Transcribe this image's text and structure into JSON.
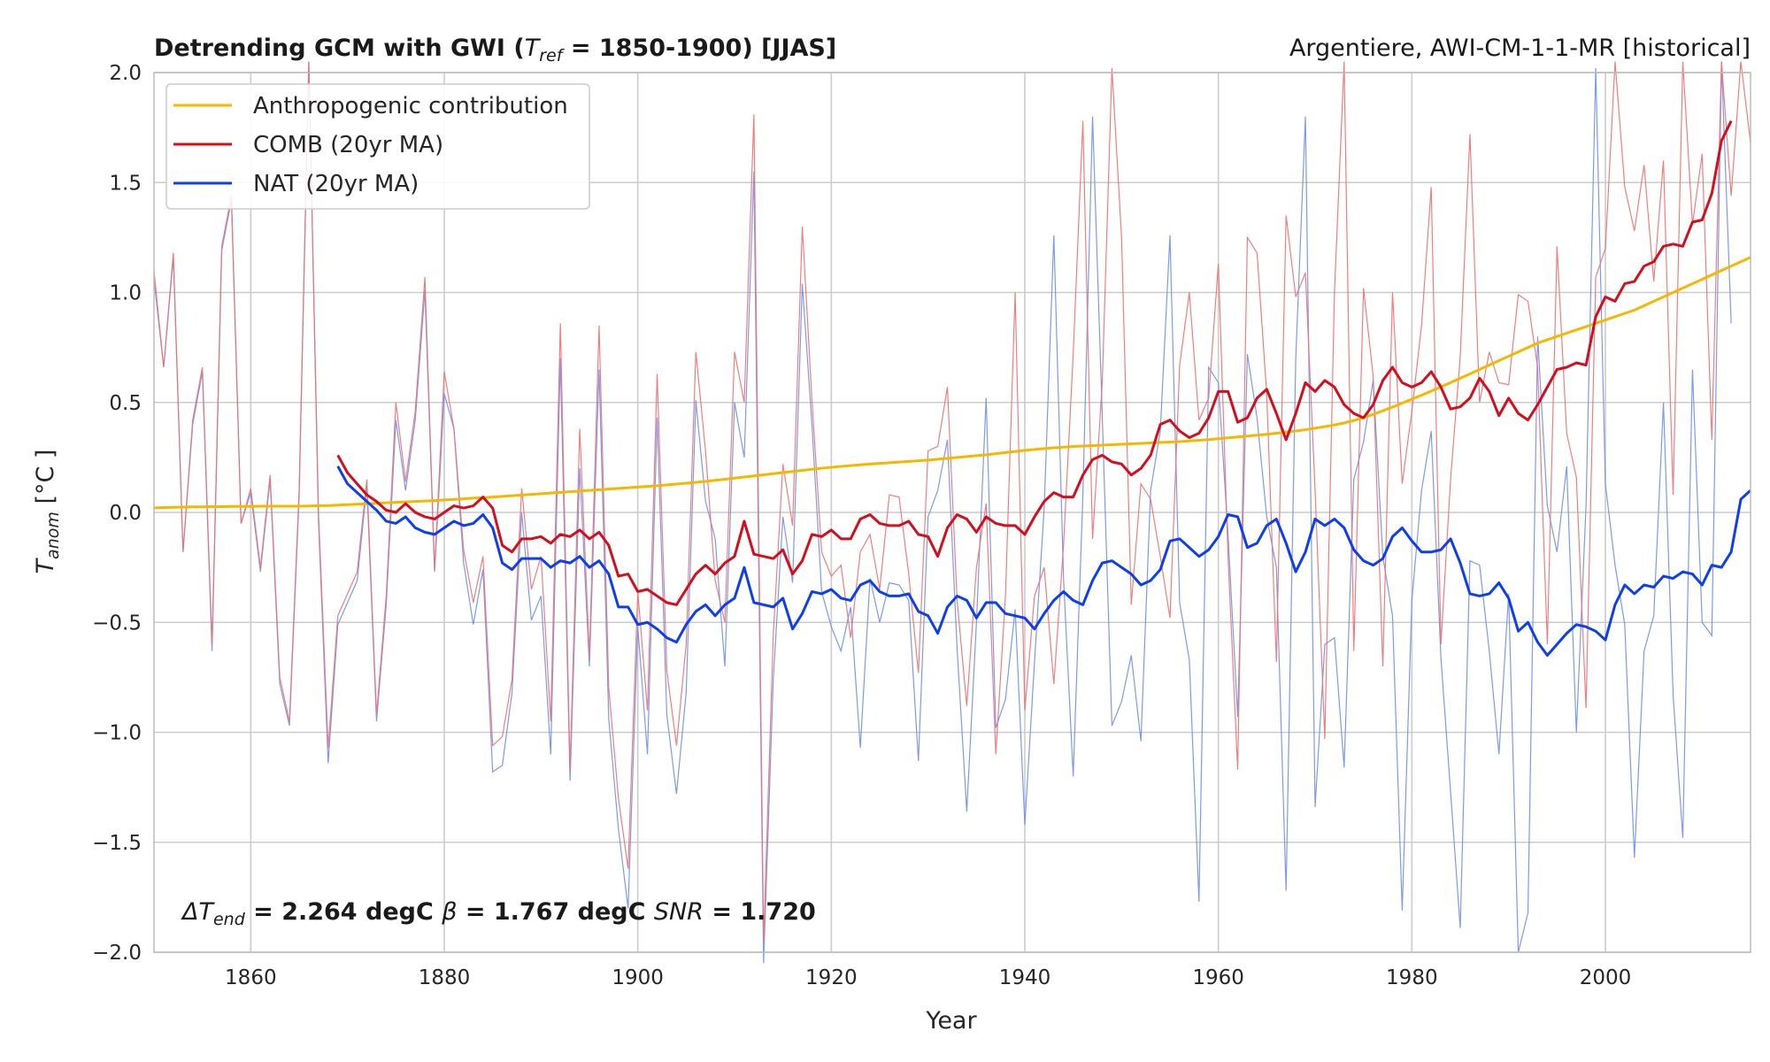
{
  "chart_data": {
    "type": "line",
    "title": "Detrending GCM with GWI (",
    "title_sym": "T",
    "title_sub": "ref",
    "title_rest": " = 1850-1900) [JJAS]",
    "subtitle_right": "Argentiere, AWI-CM-1-1-MR [historical]",
    "xlabel": "Year",
    "ylabel": "T",
    "ylabel_sub": "anom",
    "ylabel_unit": " [°C ]",
    "xlim": [
      1850,
      2015
    ],
    "ylim": [
      -2.0,
      2.0
    ],
    "xticks": [
      1860,
      1880,
      1900,
      1920,
      1940,
      1960,
      1980,
      2000
    ],
    "yticks": [
      -2.0,
      -1.5,
      -1.0,
      -0.5,
      0.0,
      0.5,
      1.0,
      1.5,
      2.0
    ],
    "ytick_labels": [
      "−2.0",
      "−1.5",
      "−1.0",
      "−0.5",
      "0.0",
      "0.5",
      "1.0",
      "1.5",
      "2.0"
    ],
    "grid": true,
    "legend_position": "top-left",
    "colors": {
      "anthro": "#f5b800",
      "comb": "#d40f1d",
      "nat": "#0d3ef0",
      "comb_raw": "#f07070",
      "nat_raw": "#6e8ff0",
      "grid": "#cccccc",
      "axis": "#bbbbbb"
    },
    "annotation": {
      "dT_sym": "ΔT",
      "dT_sub": "end",
      "dT_val": " = 2.264 degC ",
      "beta_sym": "β",
      "beta_val": " = 1.767 degC ",
      "snr_sym": "SNR",
      "snr_val": " =  1.720"
    },
    "series": [
      {
        "name": "Anthropogenic contribution",
        "key": "anthro",
        "x_start": 1850,
        "values": [
          0.02,
          0.022,
          0.023,
          0.024,
          0.025,
          0.025,
          0.026,
          0.026,
          0.027,
          0.027,
          0.027,
          0.028,
          0.028,
          0.028,
          0.028,
          0.028,
          0.029,
          0.03,
          0.031,
          0.033,
          0.035,
          0.037,
          0.039,
          0.041,
          0.044,
          0.046,
          0.048,
          0.05,
          0.052,
          0.054,
          0.057,
          0.059,
          0.062,
          0.065,
          0.067,
          0.07,
          0.073,
          0.076,
          0.079,
          0.082,
          0.085,
          0.088,
          0.091,
          0.094,
          0.097,
          0.1,
          0.103,
          0.106,
          0.109,
          0.112,
          0.115,
          0.118,
          0.121,
          0.125,
          0.129,
          0.133,
          0.137,
          0.141,
          0.146,
          0.151,
          0.156,
          0.161,
          0.166,
          0.171,
          0.176,
          0.181,
          0.186,
          0.191,
          0.196,
          0.201,
          0.205,
          0.209,
          0.213,
          0.217,
          0.22,
          0.223,
          0.226,
          0.229,
          0.232,
          0.235,
          0.238,
          0.242,
          0.246,
          0.25,
          0.254,
          0.258,
          0.262,
          0.267,
          0.272,
          0.277,
          0.282,
          0.286,
          0.29,
          0.294,
          0.297,
          0.3,
          0.302,
          0.304,
          0.306,
          0.308,
          0.31,
          0.312,
          0.314,
          0.316,
          0.318,
          0.32,
          0.322,
          0.325,
          0.328,
          0.331,
          0.335,
          0.339,
          0.343,
          0.347,
          0.351,
          0.355,
          0.36,
          0.365,
          0.37,
          0.376,
          0.383,
          0.39,
          0.398,
          0.407,
          0.418,
          0.431,
          0.446,
          0.462,
          0.479,
          0.497,
          0.515,
          0.533,
          0.552,
          0.571,
          0.59,
          0.61,
          0.63,
          0.65,
          0.67,
          0.69,
          0.71,
          0.73,
          0.75,
          0.77,
          0.785,
          0.8,
          0.815,
          0.83,
          0.845,
          0.86,
          0.875,
          0.89,
          0.905,
          0.92,
          0.94,
          0.96,
          0.98,
          1.0,
          1.02,
          1.04,
          1.06,
          1.08,
          1.1,
          1.12,
          1.14,
          1.16
        ]
      },
      {
        "name": "COMB (20yr MA)",
        "key": "comb",
        "x_start": 1869,
        "values": [
          0.26,
          0.18,
          0.13,
          0.08,
          0.05,
          0.01,
          0.0,
          0.04,
          0.0,
          -0.02,
          -0.03,
          0.0,
          0.03,
          0.02,
          0.03,
          0.07,
          0.02,
          -0.15,
          -0.18,
          -0.12,
          -0.12,
          -0.11,
          -0.14,
          -0.1,
          -0.11,
          -0.08,
          -0.12,
          -0.09,
          -0.15,
          -0.29,
          -0.28,
          -0.36,
          -0.35,
          -0.38,
          -0.41,
          -0.42,
          -0.35,
          -0.28,
          -0.24,
          -0.28,
          -0.23,
          -0.2,
          -0.04,
          -0.19,
          -0.2,
          -0.21,
          -0.17,
          -0.28,
          -0.22,
          -0.1,
          -0.11,
          -0.08,
          -0.12,
          -0.12,
          -0.03,
          -0.01,
          -0.05,
          -0.06,
          -0.06,
          -0.04,
          -0.1,
          -0.11,
          -0.2,
          -0.07,
          -0.01,
          -0.03,
          -0.09,
          -0.02,
          -0.05,
          -0.06,
          -0.06,
          -0.1,
          -0.02,
          0.05,
          0.09,
          0.07,
          0.07,
          0.17,
          0.24,
          0.26,
          0.23,
          0.22,
          0.17,
          0.2,
          0.26,
          0.4,
          0.42,
          0.37,
          0.34,
          0.36,
          0.43,
          0.55,
          0.55,
          0.41,
          0.43,
          0.52,
          0.56,
          0.45,
          0.33,
          0.45,
          0.59,
          0.55,
          0.6,
          0.57,
          0.49,
          0.45,
          0.43,
          0.49,
          0.6,
          0.66,
          0.59,
          0.57,
          0.59,
          0.64,
          0.57,
          0.47,
          0.48,
          0.52,
          0.61,
          0.55,
          0.44,
          0.52,
          0.45,
          0.42,
          0.49,
          0.57,
          0.65,
          0.66,
          0.68,
          0.67,
          0.89,
          0.98,
          0.96,
          1.04,
          1.05,
          1.12,
          1.14,
          1.21,
          1.22,
          1.21,
          1.32,
          1.33,
          1.45,
          1.69,
          1.78
        ]
      },
      {
        "name": "NAT (20yr MA)",
        "key": "nat",
        "x_start": 1869,
        "values": [
          0.21,
          0.13,
          0.09,
          0.05,
          0.01,
          -0.04,
          -0.05,
          -0.02,
          -0.07,
          -0.09,
          -0.1,
          -0.07,
          -0.04,
          -0.06,
          -0.05,
          -0.01,
          -0.07,
          -0.23,
          -0.26,
          -0.21,
          -0.21,
          -0.21,
          -0.25,
          -0.22,
          -0.23,
          -0.2,
          -0.25,
          -0.22,
          -0.28,
          -0.43,
          -0.43,
          -0.51,
          -0.5,
          -0.53,
          -0.57,
          -0.59,
          -0.51,
          -0.45,
          -0.42,
          -0.47,
          -0.42,
          -0.39,
          -0.25,
          -0.41,
          -0.42,
          -0.43,
          -0.39,
          -0.53,
          -0.46,
          -0.36,
          -0.37,
          -0.35,
          -0.39,
          -0.4,
          -0.33,
          -0.31,
          -0.36,
          -0.38,
          -0.38,
          -0.37,
          -0.45,
          -0.47,
          -0.55,
          -0.43,
          -0.38,
          -0.4,
          -0.48,
          -0.41,
          -0.41,
          -0.46,
          -0.47,
          -0.48,
          -0.53,
          -0.46,
          -0.4,
          -0.36,
          -0.4,
          -0.42,
          -0.31,
          -0.23,
          -0.22,
          -0.25,
          -0.28,
          -0.33,
          -0.31,
          -0.26,
          -0.13,
          -0.12,
          -0.16,
          -0.2,
          -0.17,
          -0.11,
          -0.01,
          -0.02,
          -0.16,
          -0.14,
          -0.06,
          -0.03,
          -0.14,
          -0.27,
          -0.18,
          -0.03,
          -0.06,
          -0.03,
          -0.07,
          -0.17,
          -0.22,
          -0.24,
          -0.21,
          -0.11,
          -0.07,
          -0.13,
          -0.18,
          -0.18,
          -0.17,
          -0.12,
          -0.23,
          -0.37,
          -0.38,
          -0.37,
          -0.32,
          -0.39,
          -0.54,
          -0.5,
          -0.59,
          -0.65,
          -0.6,
          -0.55,
          -0.51,
          -0.52,
          -0.54,
          -0.58,
          -0.42,
          -0.33,
          -0.37,
          -0.33,
          -0.34,
          -0.29,
          -0.3,
          -0.27,
          -0.28,
          -0.33,
          -0.24,
          -0.25,
          -0.18,
          0.06,
          0.1
        ]
      },
      {
        "name": "",
        "key": "comb_raw",
        "x_start": 1850,
        "values": [
          1.1,
          0.66,
          1.18,
          -0.18,
          0.42,
          0.66,
          -0.6,
          1.21,
          1.44,
          -0.05,
          0.11,
          -0.25,
          0.17,
          -0.75,
          -0.95,
          0.1,
          2.1,
          0.0,
          -1.07,
          -0.47,
          -0.37,
          -0.27,
          0.15,
          -0.92,
          -0.38,
          0.5,
          0.14,
          0.46,
          1.07,
          -0.26,
          0.64,
          0.38,
          -0.17,
          -0.41,
          -0.2,
          -1.06,
          -1.02,
          -0.76,
          0.11,
          -0.35,
          -0.2,
          -0.95,
          0.86,
          -1.17,
          0.38,
          -0.65,
          0.85,
          -0.8,
          -1.3,
          -1.62,
          -0.36,
          -0.9,
          0.63,
          -0.72,
          -1.06,
          -0.6,
          0.73,
          0.28,
          -0.31,
          -0.5,
          0.73,
          0.5,
          1.81,
          -1.95,
          -0.56,
          0.22,
          -0.06,
          1.3,
          0.51,
          -0.18,
          -0.29,
          -0.24,
          -0.57,
          -0.18,
          -0.1,
          -0.35,
          0.08,
          0.07,
          -0.28,
          -0.73,
          0.28,
          0.3,
          0.57,
          -0.4,
          -0.88,
          -0.25,
          0.04,
          -1.1,
          -0.38,
          1.0,
          -0.9,
          -0.38,
          -0.25,
          -0.78,
          -0.15,
          0.72,
          1.78,
          -0.12,
          0.59,
          2.02,
          1.25,
          -0.42,
          0.13,
          0.06,
          -0.2,
          -0.48,
          0.67,
          1.0,
          0.42,
          0.52,
          1.13,
          -0.2,
          -1.17,
          1.25,
          1.18,
          0.54,
          -0.68,
          1.35,
          0.98,
          1.09,
          0.1,
          -1.03,
          1.0,
          2.05,
          -0.63,
          1.02,
          0.62,
          -0.7,
          1.0,
          0.13,
          0.46,
          0.85,
          1.48,
          -0.6,
          0.15,
          0.71,
          1.72,
          0.5,
          0.73,
          0.59,
          0.58,
          0.99,
          0.96,
          0.66,
          -0.6,
          1.21,
          0.36,
          0.16,
          -0.89,
          1.07,
          1.2,
          2.08,
          1.48,
          1.28,
          1.58,
          1.05,
          1.6,
          0.08,
          2.06,
          1.31,
          1.63,
          0.33,
          2.05,
          1.44,
          2.05,
          1.68
        ]
      },
      {
        "name": "",
        "key": "nat_raw",
        "x_start": 1850,
        "values": [
          1.06,
          0.66,
          1.16,
          -0.18,
          0.4,
          0.64,
          -0.63,
          1.19,
          1.42,
          -0.05,
          0.09,
          -0.27,
          0.15,
          -0.78,
          -0.97,
          0.07,
          2.08,
          -0.04,
          -1.14,
          -0.51,
          -0.41,
          -0.31,
          0.12,
          -0.95,
          -0.42,
          0.42,
          0.1,
          0.42,
          1.01,
          -0.27,
          0.54,
          0.38,
          -0.23,
          -0.51,
          -0.26,
          -1.18,
          -1.15,
          -0.82,
          0.0,
          -0.49,
          -0.38,
          -1.1,
          0.7,
          -1.22,
          0.2,
          -0.7,
          0.65,
          -0.94,
          -1.44,
          -1.8,
          -0.52,
          -1.1,
          0.43,
          -0.92,
          -1.28,
          -0.82,
          0.51,
          0.05,
          -0.12,
          -0.7,
          0.5,
          0.25,
          1.55,
          -2.12,
          -0.76,
          -0.02,
          -0.32,
          1.04,
          0.4,
          -0.36,
          -0.52,
          -0.63,
          -0.43,
          -1.07,
          -0.3,
          -0.5,
          -0.32,
          -0.33,
          -0.4,
          -1.13,
          -0.02,
          0.1,
          0.33,
          -0.62,
          -1.36,
          -0.5,
          0.52,
          -0.98,
          -0.85,
          -0.44,
          -1.42,
          -0.68,
          0.02,
          1.26,
          -0.3,
          -1.2,
          0.08,
          1.8,
          0.44,
          -0.97,
          -0.86,
          -0.65,
          -1.04,
          0.1,
          0.37,
          1.26,
          -0.41,
          -0.67,
          -1.77,
          0.66,
          0.59,
          -0.1,
          -0.93,
          0.72,
          0.43,
          -0.02,
          -0.25,
          -1.72,
          0.7,
          1.8,
          -1.34,
          -0.6,
          -0.57,
          -1.16,
          0.15,
          0.32,
          0.6,
          -0.2,
          -0.47,
          -1.81,
          -0.4,
          0.1,
          0.37,
          -0.66,
          -1.27,
          -1.89,
          -0.22,
          -0.24,
          -0.63,
          -1.1,
          -0.37,
          -2.0,
          -1.82,
          0.8,
          0.03,
          -0.18,
          0.21,
          -1.0,
          0.03,
          2.02,
          0.13,
          -0.24,
          -0.51,
          -1.57,
          -0.63,
          -0.47,
          0.5,
          -0.83,
          -1.48,
          0.65,
          -0.5,
          -0.56,
          2.05,
          0.86
        ]
      }
    ]
  }
}
